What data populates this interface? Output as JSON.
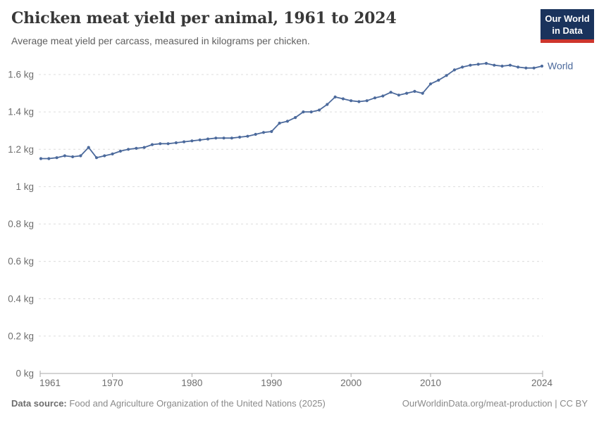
{
  "header": {
    "logo": {
      "line1": "Our World",
      "line2": "in Data"
    }
  },
  "footer": {
    "source_label": "Data source:",
    "source_text": " Food and Agriculture Organization of the United Nations (2025)",
    "link_text": "OurWorldinData.org/meat-production | CC BY"
  },
  "colors": {
    "line": "#4C6A9C",
    "gridline": "#dcdcdc",
    "axis": "#a9a9a9",
    "logo_bg": "#1A335C",
    "logo_bar": "#CE352C"
  },
  "chart_data": {
    "type": "line",
    "title": "Chicken meat yield per animal, 1961 to 2024",
    "subtitle": "Average meat yield per carcass, measured in kilograms per chicken.",
    "unit": "kg",
    "grid": true,
    "legend_position": "end-of-line",
    "xlim": [
      1961,
      2024
    ],
    "ylim": [
      0,
      1.6
    ],
    "xticks": [
      1961,
      1970,
      1980,
      1990,
      2000,
      2010,
      2024
    ],
    "yticks": [
      {
        "value": 0,
        "label": "0 kg"
      },
      {
        "value": 0.2,
        "label": "0.2 kg"
      },
      {
        "value": 0.4,
        "label": "0.4 kg"
      },
      {
        "value": 0.6,
        "label": "0.6 kg"
      },
      {
        "value": 0.8,
        "label": "0.8 kg"
      },
      {
        "value": 1,
        "label": "1 kg"
      },
      {
        "value": 1.2,
        "label": "1.2 kg"
      },
      {
        "value": 1.4,
        "label": "1.4 kg"
      },
      {
        "value": 1.6,
        "label": "1.6 kg"
      }
    ],
    "x": [
      1961,
      1962,
      1963,
      1964,
      1965,
      1966,
      1967,
      1968,
      1969,
      1970,
      1971,
      1972,
      1973,
      1974,
      1975,
      1976,
      1977,
      1978,
      1979,
      1980,
      1981,
      1982,
      1983,
      1984,
      1985,
      1986,
      1987,
      1988,
      1989,
      1990,
      1991,
      1992,
      1993,
      1994,
      1995,
      1996,
      1997,
      1998,
      1999,
      2000,
      2001,
      2002,
      2003,
      2004,
      2005,
      2006,
      2007,
      2008,
      2009,
      2010,
      2011,
      2012,
      2013,
      2014,
      2015,
      2016,
      2017,
      2018,
      2019,
      2020,
      2021,
      2022,
      2023,
      2024
    ],
    "series": [
      {
        "name": "World",
        "color": "#4C6A9C",
        "values": [
          1.15,
          1.15,
          1.155,
          1.165,
          1.16,
          1.165,
          1.21,
          1.155,
          1.165,
          1.175,
          1.19,
          1.2,
          1.205,
          1.21,
          1.225,
          1.23,
          1.23,
          1.235,
          1.24,
          1.245,
          1.25,
          1.255,
          1.26,
          1.26,
          1.26,
          1.265,
          1.27,
          1.28,
          1.29,
          1.295,
          1.34,
          1.35,
          1.37,
          1.4,
          1.4,
          1.41,
          1.44,
          1.48,
          1.47,
          1.46,
          1.455,
          1.46,
          1.475,
          1.485,
          1.505,
          1.49,
          1.5,
          1.51,
          1.5,
          1.55,
          1.57,
          1.595,
          1.625,
          1.64,
          1.65,
          1.655,
          1.66,
          1.65,
          1.645,
          1.65,
          1.64,
          1.635,
          1.635,
          1.645
        ]
      }
    ]
  }
}
